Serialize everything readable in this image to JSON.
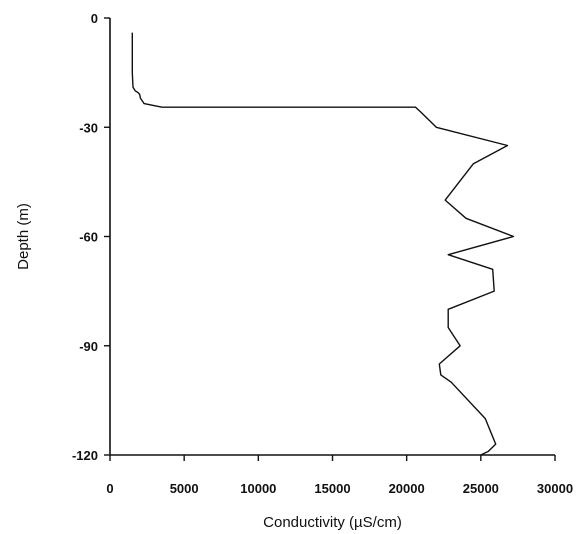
{
  "chart_data": {
    "type": "line",
    "title": "",
    "xlabel": "Conductivity (µS/cm)",
    "ylabel": "Depth (m)",
    "xlim": [
      0,
      30000
    ],
    "ylim": [
      -120,
      0
    ],
    "xticks": [
      0,
      5000,
      10000,
      15000,
      20000,
      25000,
      30000
    ],
    "yticks": [
      0,
      -30,
      -60,
      -90,
      -120
    ],
    "grid": false,
    "series": [
      {
        "x": [
          1500,
          1500,
          1550,
          1700,
          1900,
          2000,
          2050,
          2300,
          3500,
          20600,
          21000,
          21500,
          22000,
          26800,
          24500,
          22600,
          24000,
          27200,
          22800,
          25800,
          25900,
          22800,
          22800,
          23600,
          22200,
          22300,
          23000,
          25300,
          25800,
          26000,
          25500,
          25000
        ],
        "y": [
          -4,
          -15,
          -19,
          -20,
          -20.5,
          -21,
          -22,
          -23.5,
          -24.5,
          -24.5,
          -26,
          -28,
          -30,
          -35,
          -40,
          -50,
          -55,
          -60,
          -65,
          -69,
          -75,
          -80,
          -85,
          -90,
          -95,
          -98,
          -100,
          -110,
          -115,
          -117,
          -119,
          -120
        ]
      }
    ]
  }
}
